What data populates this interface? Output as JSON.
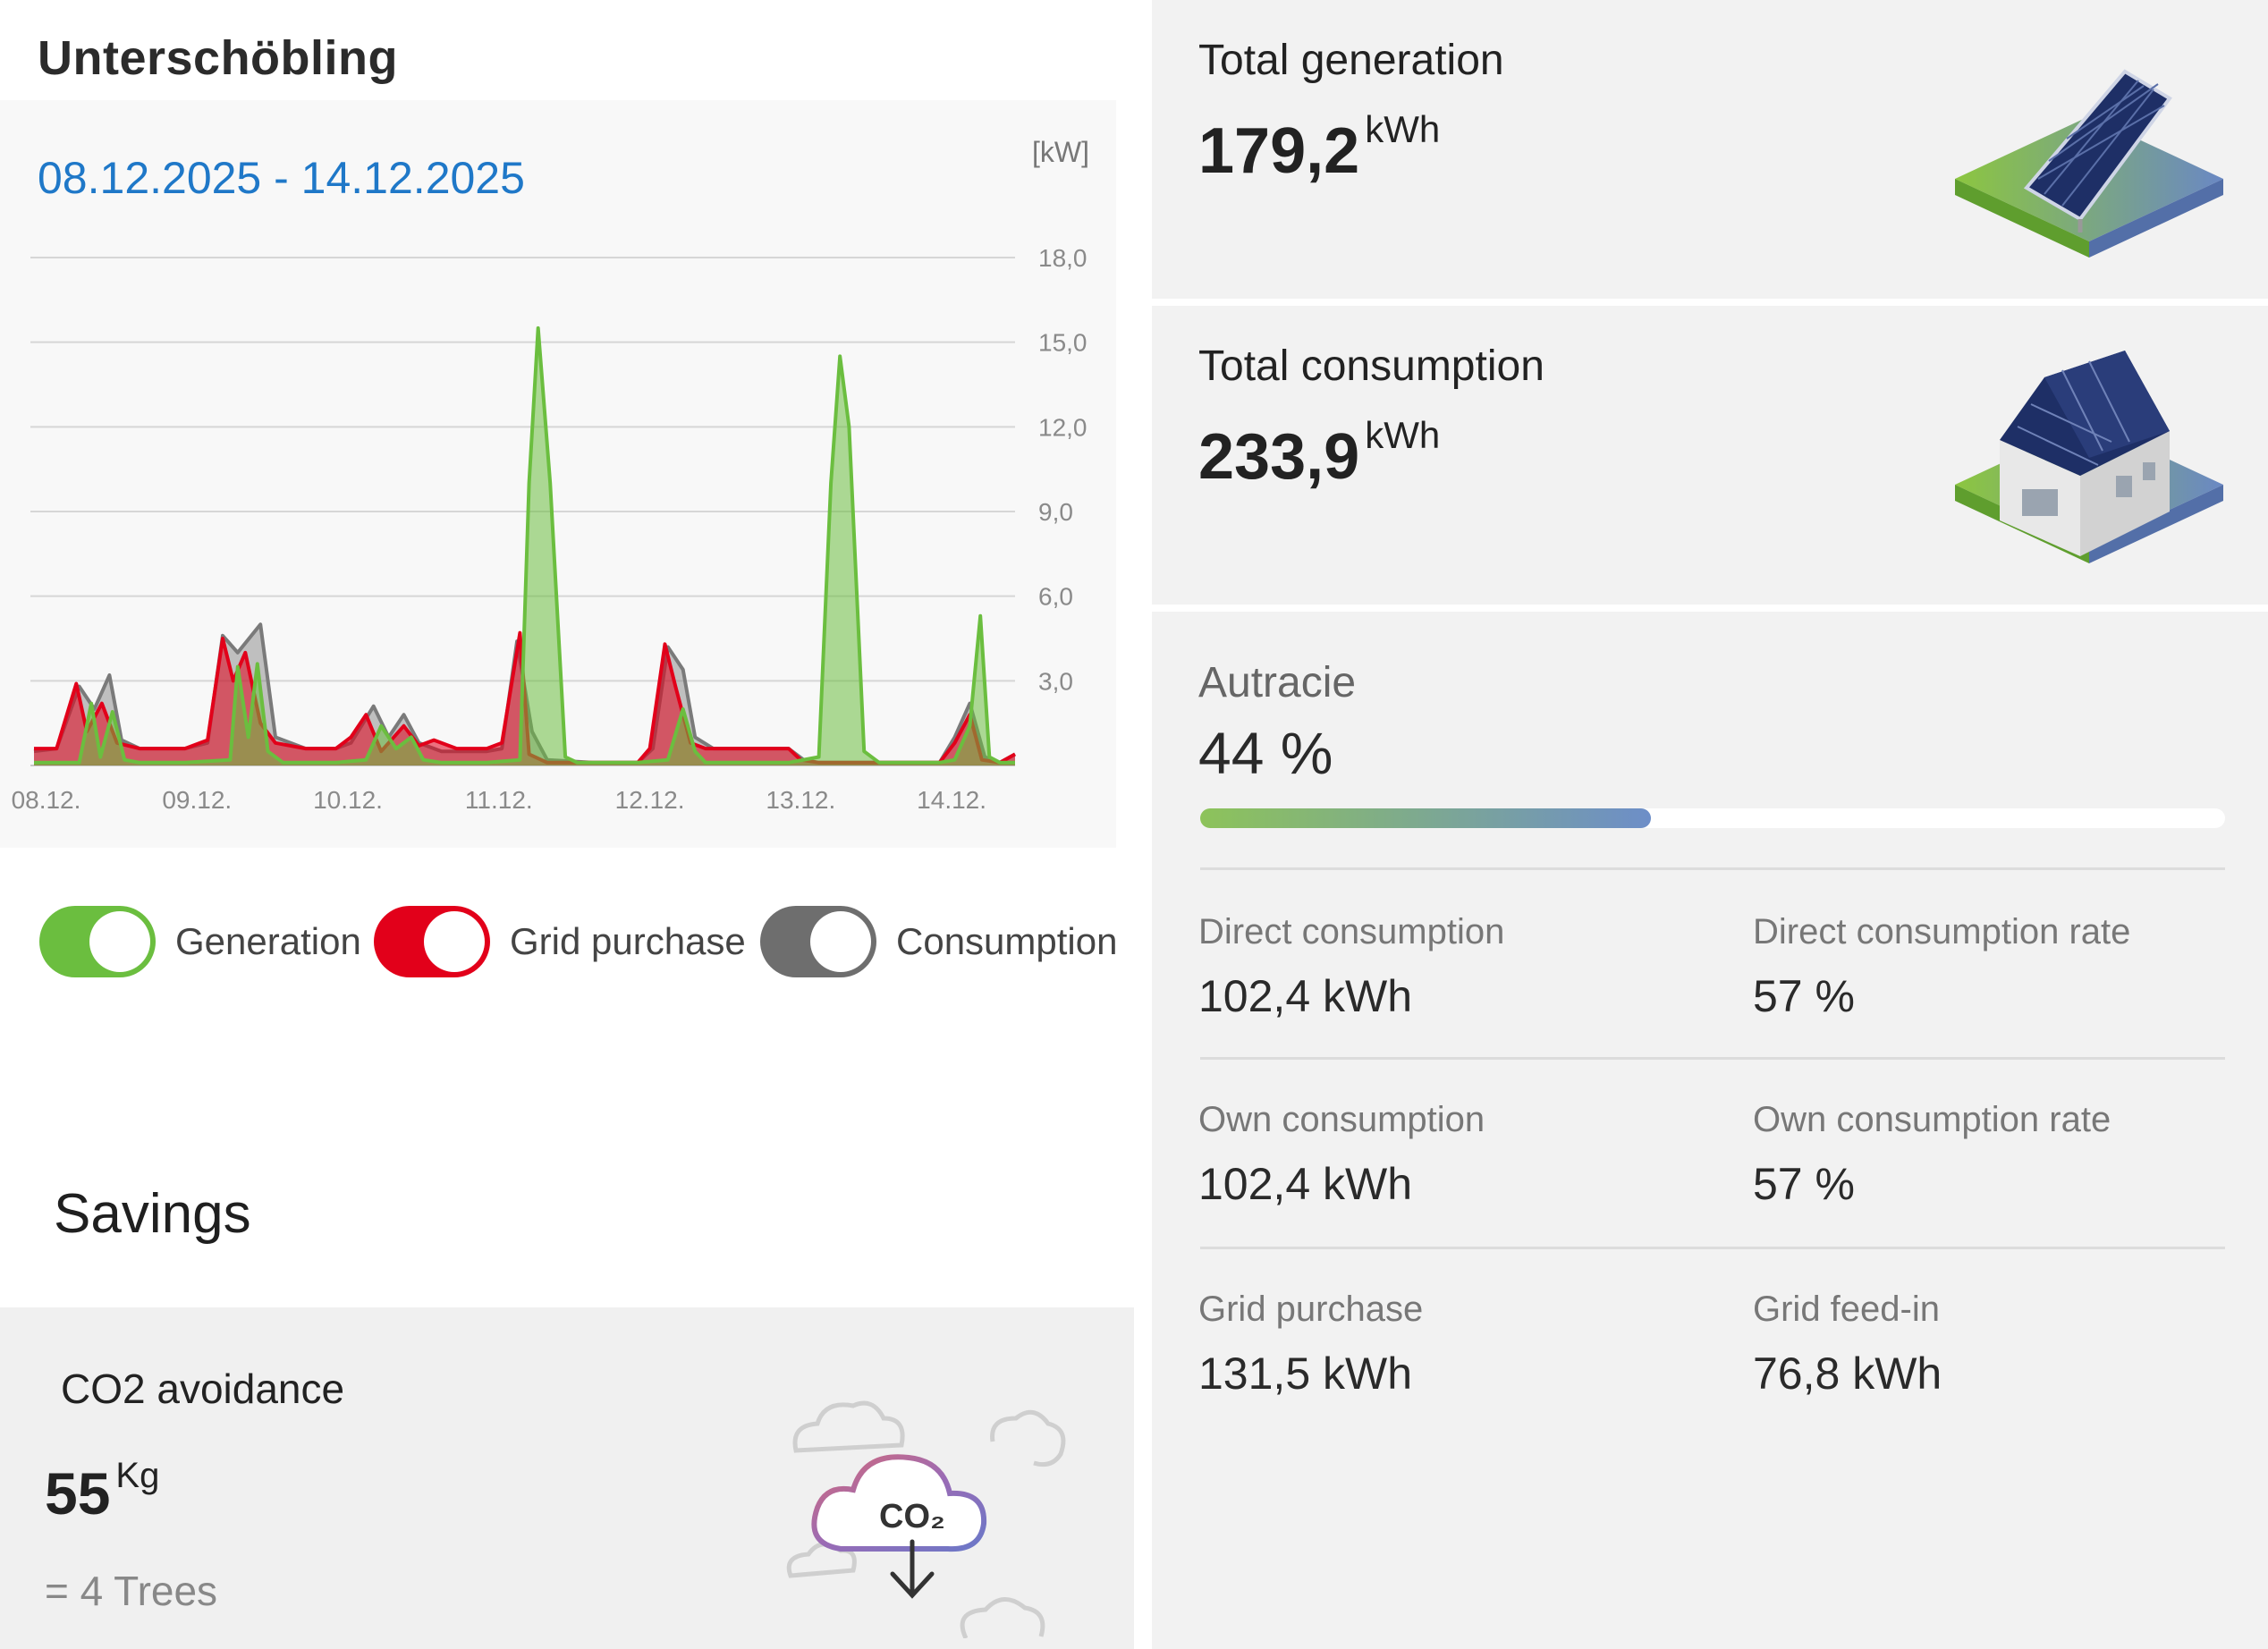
{
  "site": {
    "title": "Unterschöbling"
  },
  "chart": {
    "date_range": "08.12.2025 - 14.12.2025",
    "unit": "[kW]"
  },
  "chart_data": {
    "type": "area",
    "title": "",
    "ylabel": "[kW]",
    "ylim": [
      0,
      18
    ],
    "yticks": [
      "18,0",
      "15,0",
      "12,0",
      "9,0",
      "6,0",
      "3,0"
    ],
    "ytick_values": [
      18,
      15,
      12,
      9,
      6,
      3
    ],
    "categories": [
      "08.12.",
      "09.12.",
      "10.12.",
      "11.12.",
      "12.12.",
      "13.12.",
      "14.12."
    ],
    "grid": true,
    "series": [
      {
        "name": "Consumption",
        "color": "#7a7a7a",
        "points": [
          [
            0,
            0.5
          ],
          [
            0.15,
            0.6
          ],
          [
            0.3,
            2.8
          ],
          [
            0.4,
            2.0
          ],
          [
            0.5,
            3.2
          ],
          [
            0.58,
            0.9
          ],
          [
            0.7,
            0.6
          ],
          [
            1.0,
            0.6
          ],
          [
            1.15,
            0.8
          ],
          [
            1.25,
            4.6
          ],
          [
            1.35,
            4.0
          ],
          [
            1.5,
            5.0
          ],
          [
            1.6,
            1.0
          ],
          [
            1.8,
            0.6
          ],
          [
            2.0,
            0.6
          ],
          [
            2.1,
            0.8
          ],
          [
            2.25,
            2.1
          ],
          [
            2.35,
            1.0
          ],
          [
            2.45,
            1.8
          ],
          [
            2.55,
            0.8
          ],
          [
            2.7,
            0.5
          ],
          [
            3.0,
            0.5
          ],
          [
            3.1,
            0.6
          ],
          [
            3.2,
            4.4
          ],
          [
            3.3,
            1.2
          ],
          [
            3.4,
            0.2
          ],
          [
            3.7,
            0.1
          ],
          [
            4.0,
            0.1
          ],
          [
            4.1,
            0.6
          ],
          [
            4.2,
            4.2
          ],
          [
            4.3,
            3.4
          ],
          [
            4.38,
            1.0
          ],
          [
            4.5,
            0.6
          ],
          [
            5.0,
            0.6
          ],
          [
            5.1,
            0.2
          ],
          [
            5.2,
            0.1
          ],
          [
            5.6,
            0.1
          ],
          [
            6.0,
            0.1
          ],
          [
            6.1,
            1.0
          ],
          [
            6.2,
            2.2
          ],
          [
            6.3,
            0.3
          ],
          [
            6.4,
            0.1
          ],
          [
            6.5,
            0.4
          ]
        ]
      },
      {
        "name": "Grid purchase",
        "color": "#e2001a",
        "points": [
          [
            0,
            0.6
          ],
          [
            0.15,
            0.6
          ],
          [
            0.28,
            2.9
          ],
          [
            0.35,
            1.2
          ],
          [
            0.45,
            2.2
          ],
          [
            0.55,
            0.8
          ],
          [
            0.7,
            0.6
          ],
          [
            1.0,
            0.6
          ],
          [
            1.15,
            0.9
          ],
          [
            1.25,
            4.5
          ],
          [
            1.32,
            3.0
          ],
          [
            1.4,
            4.0
          ],
          [
            1.5,
            1.5
          ],
          [
            1.6,
            0.8
          ],
          [
            1.8,
            0.6
          ],
          [
            2.0,
            0.6
          ],
          [
            2.1,
            1.0
          ],
          [
            2.2,
            1.8
          ],
          [
            2.3,
            0.5
          ],
          [
            2.45,
            1.4
          ],
          [
            2.55,
            0.7
          ],
          [
            2.65,
            0.9
          ],
          [
            2.8,
            0.6
          ],
          [
            3.0,
            0.6
          ],
          [
            3.1,
            0.8
          ],
          [
            3.22,
            4.7
          ],
          [
            3.28,
            0.4
          ],
          [
            3.4,
            0.1
          ],
          [
            4.0,
            0.1
          ],
          [
            4.08,
            0.6
          ],
          [
            4.18,
            4.3
          ],
          [
            4.25,
            2.8
          ],
          [
            4.35,
            0.8
          ],
          [
            4.45,
            0.6
          ],
          [
            5.0,
            0.6
          ],
          [
            5.08,
            0.2
          ],
          [
            5.2,
            0.1
          ],
          [
            6.0,
            0.1
          ],
          [
            6.1,
            0.8
          ],
          [
            6.2,
            1.8
          ],
          [
            6.28,
            0.2
          ],
          [
            6.4,
            0.1
          ],
          [
            6.5,
            0.4
          ]
        ]
      },
      {
        "name": "Generation",
        "color": "#6bbe3f",
        "points": [
          [
            0,
            0.1
          ],
          [
            0.3,
            0.1
          ],
          [
            0.38,
            2.2
          ],
          [
            0.44,
            0.3
          ],
          [
            0.52,
            1.9
          ],
          [
            0.6,
            0.2
          ],
          [
            0.7,
            0.1
          ],
          [
            1.0,
            0.1
          ],
          [
            1.3,
            0.2
          ],
          [
            1.35,
            3.5
          ],
          [
            1.42,
            1.0
          ],
          [
            1.48,
            3.6
          ],
          [
            1.55,
            0.5
          ],
          [
            1.65,
            0.1
          ],
          [
            2.0,
            0.1
          ],
          [
            2.2,
            0.2
          ],
          [
            2.3,
            1.4
          ],
          [
            2.4,
            0.6
          ],
          [
            2.5,
            1.0
          ],
          [
            2.58,
            0.2
          ],
          [
            2.7,
            0.1
          ],
          [
            3.0,
            0.1
          ],
          [
            3.22,
            0.2
          ],
          [
            3.28,
            10.0
          ],
          [
            3.34,
            15.5
          ],
          [
            3.42,
            10.0
          ],
          [
            3.52,
            0.3
          ],
          [
            3.6,
            0.1
          ],
          [
            4.0,
            0.1
          ],
          [
            4.2,
            0.2
          ],
          [
            4.3,
            2.0
          ],
          [
            4.38,
            0.5
          ],
          [
            4.45,
            0.1
          ],
          [
            5.0,
            0.1
          ],
          [
            5.2,
            0.3
          ],
          [
            5.28,
            10.0
          ],
          [
            5.34,
            14.5
          ],
          [
            5.4,
            12.0
          ],
          [
            5.5,
            0.5
          ],
          [
            5.6,
            0.1
          ],
          [
            6.0,
            0.1
          ],
          [
            6.1,
            0.2
          ],
          [
            6.2,
            1.4
          ],
          [
            6.27,
            5.3
          ],
          [
            6.33,
            0.3
          ],
          [
            6.4,
            0.1
          ],
          [
            6.5,
            0.1
          ]
        ]
      }
    ]
  },
  "legend": [
    {
      "label": "Generation",
      "color": "#6bbe3f"
    },
    {
      "label": "Grid purchase",
      "color": "#e2001a"
    },
    {
      "label": "Consumption",
      "color": "#6e6e6e"
    }
  ],
  "savings": {
    "title": "Savings",
    "co2_label": "CO2 avoidance",
    "co2_value": "55",
    "co2_unit": "Kg",
    "trees": "= 4 Trees",
    "co2_icon_text": "CO₂"
  },
  "generation": {
    "title": "Total generation",
    "value": "179,2",
    "unit": "kWh",
    "icon": "solar-panel-illustration"
  },
  "consumption": {
    "title": "Total consumption",
    "value": "233,9",
    "unit": "kWh",
    "icon": "house-illustration"
  },
  "autarky": {
    "label": "Autracie",
    "value": "44 %",
    "fraction": 0.44
  },
  "stats": {
    "direct_consumption": {
      "label": "Direct consumption",
      "value": "102,4 kWh"
    },
    "direct_consumption_rate": {
      "label": "Direct consumption rate",
      "value": "57 %"
    },
    "own_consumption": {
      "label": "Own consumption",
      "value": "102,4 kWh"
    },
    "own_consumption_rate": {
      "label": "Own consumption rate",
      "value": "57 %"
    },
    "grid_purchase": {
      "label": "Grid purchase",
      "value": "131,5 kWh"
    },
    "grid_feed_in": {
      "label": "Grid feed-in",
      "value": "76,8 kWh"
    }
  }
}
